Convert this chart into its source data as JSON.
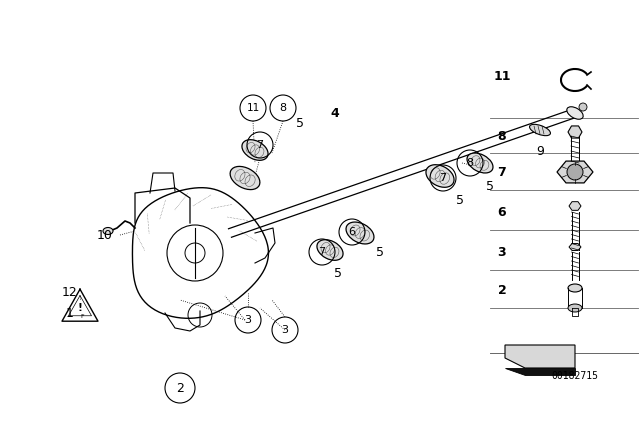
{
  "bg_color": "#ffffff",
  "line_color": "#000000",
  "part_number_text": "00182715",
  "fig_width": 6.4,
  "fig_height": 4.48,
  "dpi": 100
}
